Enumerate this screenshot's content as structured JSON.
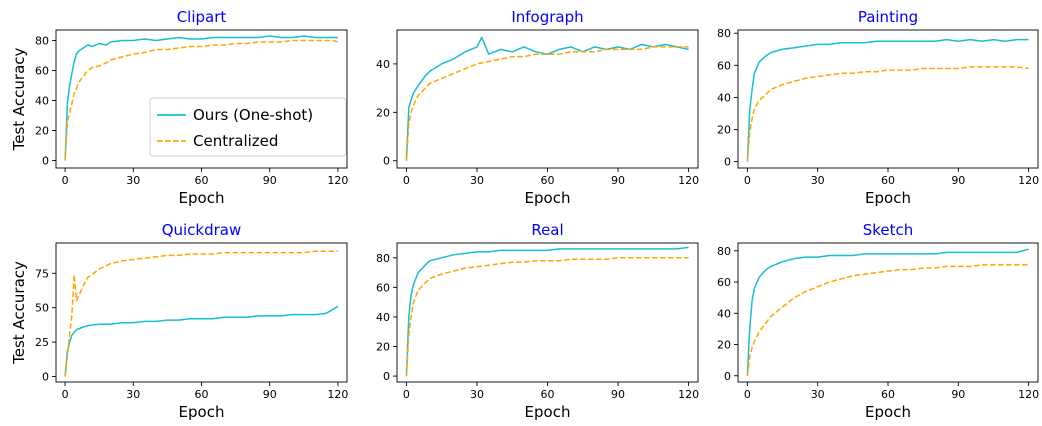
{
  "figure": {
    "colors": {
      "ours": "#17becf",
      "centralized": "#ffa500",
      "title": "#0000ff",
      "axis": "#000000"
    },
    "legend_placement": "lower-right of first panel"
  },
  "chart_data": [
    {
      "type": "line",
      "title": "Clipart",
      "xlabel": "Epoch",
      "ylabel": "Test Accuracy",
      "xlim": [
        -4,
        124
      ],
      "ylim": [
        -5,
        87
      ],
      "xticks": [
        0,
        30,
        60,
        90,
        120
      ],
      "yticks": [
        0,
        20,
        40,
        60,
        80
      ],
      "legend": {
        "placement": "lower-right"
      },
      "series": [
        {
          "name": "Ours (One-shot)",
          "style": "solid",
          "x": [
            0,
            1,
            2,
            3,
            4,
            5,
            6,
            8,
            10,
            12,
            15,
            18,
            20,
            25,
            30,
            35,
            40,
            45,
            50,
            55,
            60,
            65,
            70,
            75,
            80,
            85,
            90,
            95,
            100,
            105,
            110,
            115,
            118,
            120
          ],
          "y": [
            0,
            38,
            50,
            58,
            66,
            71,
            73,
            75,
            77,
            76,
            78,
            77,
            79,
            80,
            80,
            81,
            80,
            81,
            82,
            81,
            81,
            82,
            82,
            82,
            82,
            82,
            83,
            82,
            82,
            83,
            82,
            82,
            82,
            82
          ]
        },
        {
          "name": "Centralized",
          "style": "dashed",
          "x": [
            0,
            1,
            2,
            3,
            4,
            5,
            6,
            8,
            10,
            12,
            15,
            18,
            20,
            25,
            30,
            35,
            40,
            45,
            50,
            55,
            60,
            65,
            70,
            75,
            80,
            85,
            90,
            95,
            100,
            105,
            110,
            115,
            118,
            120
          ],
          "y": [
            0,
            26,
            32,
            38,
            45,
            48,
            52,
            56,
            60,
            62,
            63,
            65,
            67,
            69,
            71,
            72,
            74,
            74,
            75,
            76,
            76,
            77,
            77,
            78,
            78,
            79,
            79,
            79,
            80,
            80,
            80,
            80,
            80,
            79
          ]
        }
      ]
    },
    {
      "type": "line",
      "title": "Infograph",
      "xlabel": "Epoch",
      "ylabel": "",
      "xlim": [
        -4,
        124
      ],
      "ylim": [
        -3,
        54
      ],
      "xticks": [
        0,
        30,
        60,
        90,
        120
      ],
      "yticks": [
        0,
        20,
        40
      ],
      "series": [
        {
          "name": "Ours (One-shot)",
          "style": "solid",
          "x": [
            0,
            1,
            2,
            3,
            5,
            8,
            10,
            15,
            20,
            25,
            30,
            32,
            35,
            40,
            45,
            50,
            55,
            60,
            65,
            70,
            75,
            80,
            85,
            90,
            95,
            100,
            105,
            110,
            115,
            120
          ],
          "y": [
            0,
            22,
            25,
            28,
            31,
            35,
            37,
            40,
            42,
            45,
            47,
            51,
            44,
            46,
            45,
            47,
            45,
            44,
            46,
            47,
            45,
            47,
            46,
            47,
            46,
            48,
            47,
            48,
            47,
            46
          ]
        },
        {
          "name": "Centralized",
          "style": "dashed",
          "x": [
            0,
            1,
            2,
            3,
            5,
            8,
            10,
            15,
            20,
            25,
            30,
            35,
            40,
            45,
            50,
            55,
            60,
            65,
            70,
            75,
            80,
            85,
            90,
            95,
            100,
            105,
            110,
            115,
            120
          ],
          "y": [
            0,
            15,
            20,
            23,
            27,
            30,
            32,
            34,
            36,
            38,
            40,
            41,
            42,
            43,
            43,
            44,
            44,
            44,
            45,
            45,
            45,
            46,
            46,
            46,
            46,
            47,
            47,
            47,
            47
          ]
        }
      ]
    },
    {
      "type": "line",
      "title": "Painting",
      "xlabel": "Epoch",
      "ylabel": "",
      "xlim": [
        -4,
        124
      ],
      "ylim": [
        -4,
        82
      ],
      "xticks": [
        0,
        30,
        60,
        90,
        120
      ],
      "yticks": [
        0,
        20,
        40,
        60,
        80
      ],
      "series": [
        {
          "name": "Ours (One-shot)",
          "style": "solid",
          "x": [
            0,
            1,
            2,
            3,
            5,
            8,
            10,
            15,
            20,
            25,
            30,
            35,
            40,
            45,
            50,
            55,
            60,
            65,
            70,
            75,
            80,
            85,
            90,
            95,
            100,
            105,
            110,
            115,
            120
          ],
          "y": [
            0,
            32,
            45,
            55,
            62,
            66,
            68,
            70,
            71,
            72,
            73,
            73,
            74,
            74,
            74,
            75,
            75,
            75,
            75,
            75,
            75,
            76,
            75,
            76,
            75,
            76,
            75,
            76,
            76
          ]
        },
        {
          "name": "Centralized",
          "style": "dashed",
          "x": [
            0,
            1,
            2,
            3,
            5,
            8,
            10,
            15,
            20,
            25,
            30,
            35,
            40,
            45,
            50,
            55,
            60,
            65,
            70,
            75,
            80,
            85,
            90,
            95,
            100,
            105,
            110,
            115,
            120
          ],
          "y": [
            0,
            18,
            27,
            33,
            38,
            42,
            45,
            48,
            50,
            52,
            53,
            54,
            55,
            55,
            56,
            56,
            57,
            57,
            57,
            58,
            58,
            58,
            58,
            59,
            59,
            59,
            59,
            59,
            58
          ]
        }
      ]
    },
    {
      "type": "line",
      "title": "Quickdraw",
      "xlabel": "Epoch",
      "ylabel": "Test Accuracy",
      "xlim": [
        -4,
        124
      ],
      "ylim": [
        -4,
        97
      ],
      "xticks": [
        0,
        30,
        60,
        90,
        120
      ],
      "yticks": [
        0,
        25,
        50,
        75
      ],
      "series": [
        {
          "name": "Ours (One-shot)",
          "style": "solid",
          "x": [
            0,
            1,
            2,
            3,
            5,
            8,
            10,
            15,
            20,
            25,
            30,
            35,
            40,
            45,
            50,
            55,
            60,
            65,
            70,
            75,
            80,
            85,
            90,
            95,
            100,
            105,
            110,
            115,
            120
          ],
          "y": [
            0,
            18,
            25,
            30,
            34,
            36,
            37,
            38,
            38,
            39,
            39,
            40,
            40,
            41,
            41,
            42,
            42,
            42,
            43,
            43,
            43,
            44,
            44,
            44,
            45,
            45,
            45,
            46,
            51
          ]
        },
        {
          "name": "Centralized",
          "style": "dashed",
          "x": [
            0,
            1,
            2,
            3,
            4,
            5,
            8,
            10,
            15,
            20,
            25,
            30,
            35,
            40,
            45,
            50,
            55,
            60,
            65,
            70,
            75,
            80,
            85,
            90,
            95,
            100,
            105,
            110,
            115,
            120
          ],
          "y": [
            0,
            15,
            30,
            45,
            74,
            55,
            66,
            72,
            78,
            82,
            84,
            85,
            86,
            87,
            88,
            88,
            89,
            89,
            89,
            90,
            90,
            90,
            90,
            90,
            90,
            90,
            90,
            91,
            91,
            91
          ]
        }
      ]
    },
    {
      "type": "line",
      "title": "Real",
      "xlabel": "Epoch",
      "ylabel": "",
      "xlim": [
        -4,
        124
      ],
      "ylim": [
        -4,
        90
      ],
      "xticks": [
        0,
        30,
        60,
        90,
        120
      ],
      "yticks": [
        0,
        20,
        40,
        60,
        80
      ],
      "series": [
        {
          "name": "Ours (One-shot)",
          "style": "solid",
          "x": [
            0,
            1,
            2,
            3,
            5,
            8,
            10,
            15,
            20,
            25,
            30,
            35,
            40,
            45,
            50,
            55,
            60,
            65,
            70,
            75,
            80,
            85,
            90,
            95,
            100,
            105,
            110,
            115,
            120
          ],
          "y": [
            0,
            40,
            55,
            62,
            70,
            75,
            78,
            80,
            82,
            83,
            84,
            84,
            85,
            85,
            85,
            85,
            85,
            86,
            86,
            86,
            86,
            86,
            86,
            86,
            86,
            86,
            86,
            86,
            87
          ]
        },
        {
          "name": "Centralized",
          "style": "dashed",
          "x": [
            0,
            1,
            2,
            3,
            5,
            8,
            10,
            15,
            20,
            25,
            30,
            35,
            40,
            45,
            50,
            55,
            60,
            65,
            70,
            75,
            80,
            85,
            90,
            95,
            100,
            105,
            110,
            115,
            120
          ],
          "y": [
            0,
            28,
            40,
            50,
            58,
            63,
            66,
            69,
            71,
            73,
            74,
            75,
            76,
            77,
            77,
            78,
            78,
            78,
            79,
            79,
            79,
            79,
            80,
            80,
            80,
            80,
            80,
            80,
            80
          ]
        }
      ]
    },
    {
      "type": "line",
      "title": "Sketch",
      "xlabel": "Epoch",
      "ylabel": "",
      "xlim": [
        -4,
        124
      ],
      "ylim": [
        -4,
        85
      ],
      "xticks": [
        0,
        30,
        60,
        90,
        120
      ],
      "yticks": [
        0,
        20,
        40,
        60,
        80
      ],
      "series": [
        {
          "name": "Ours (One-shot)",
          "style": "solid",
          "x": [
            0,
            1,
            2,
            3,
            5,
            8,
            10,
            15,
            20,
            25,
            30,
            35,
            40,
            45,
            50,
            55,
            60,
            65,
            70,
            75,
            80,
            85,
            90,
            95,
            100,
            105,
            110,
            115,
            120
          ],
          "y": [
            0,
            30,
            48,
            56,
            63,
            68,
            70,
            73,
            75,
            76,
            76,
            77,
            77,
            77,
            78,
            78,
            78,
            78,
            78,
            78,
            78,
            79,
            79,
            79,
            79,
            79,
            79,
            79,
            81
          ]
        },
        {
          "name": "Centralized",
          "style": "dashed",
          "x": [
            0,
            1,
            2,
            3,
            5,
            8,
            10,
            15,
            20,
            25,
            30,
            35,
            40,
            45,
            50,
            55,
            60,
            65,
            70,
            75,
            80,
            85,
            90,
            95,
            100,
            105,
            110,
            115,
            120
          ],
          "y": [
            0,
            12,
            18,
            22,
            28,
            34,
            38,
            44,
            50,
            54,
            57,
            60,
            62,
            64,
            65,
            66,
            67,
            68,
            68,
            69,
            69,
            70,
            70,
            70,
            71,
            71,
            71,
            71,
            71
          ]
        }
      ]
    }
  ]
}
